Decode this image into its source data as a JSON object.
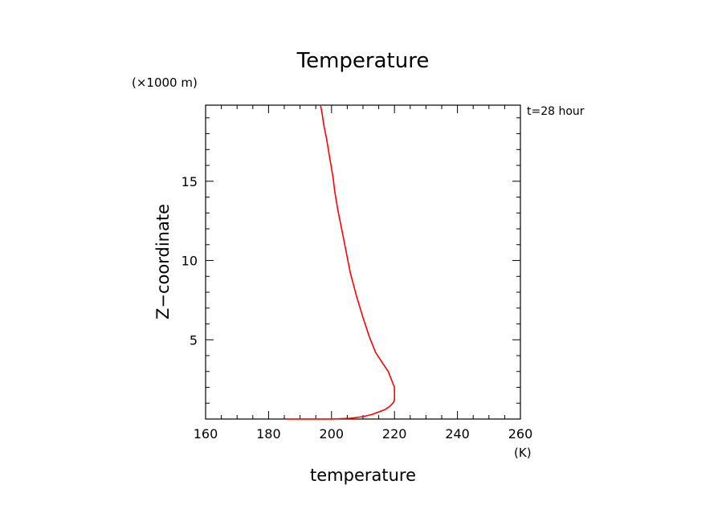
{
  "chart_data": {
    "type": "line",
    "title": "Temperature",
    "xlabel": "temperature",
    "x_unit": "(K)",
    "ylabel": "Z−coordinate",
    "y_unit": "(×1000 m)",
    "annotation": "t=28 hour",
    "xlim": [
      160,
      260
    ],
    "ylim": [
      0,
      19.8
    ],
    "x_ticks": [
      160,
      180,
      200,
      220,
      240,
      260
    ],
    "y_ticks": [
      5,
      10,
      15
    ],
    "grid": false,
    "line_color": "#ff0000",
    "series": [
      {
        "x": [
          186,
          200,
          206,
          210,
          213,
          215,
          217,
          218.5,
          219.5,
          220,
          220,
          218,
          216,
          214,
          212,
          210,
          208,
          206,
          205,
          204,
          203,
          202,
          201,
          200.5,
          199.5,
          198.5,
          197.5,
          197,
          196.5
        ],
        "y": [
          0,
          0,
          0.05,
          0.15,
          0.3,
          0.45,
          0.6,
          0.8,
          1.0,
          1.2,
          2.0,
          3.0,
          3.6,
          4.2,
          5.2,
          6.4,
          7.7,
          9.2,
          10.2,
          11.2,
          12.2,
          13.2,
          14.4,
          15.2,
          16.4,
          17.6,
          18.6,
          19.3,
          19.8
        ]
      }
    ]
  }
}
